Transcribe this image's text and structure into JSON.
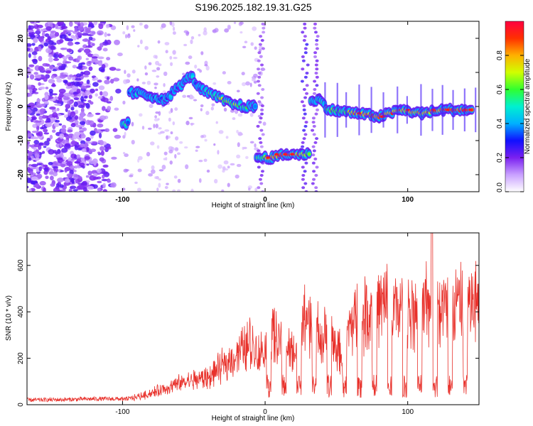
{
  "figure_title": "S196.2025.182.19.31.G25",
  "colors": {
    "snr_line": "#e8302a",
    "frame": "#000000"
  },
  "chart_data": [
    {
      "type": "heatmap",
      "title": "",
      "xlabel": "Height of straight line (km)",
      "ylabel": "Frequency (Hz)",
      "xlim": [
        -167,
        150
      ],
      "ylim": [
        -25,
        25
      ],
      "xticks": [
        -100,
        0,
        100
      ],
      "yticks": [
        -20,
        -10,
        0,
        10,
        20
      ],
      "colorbar": {
        "label": "Normalized spectral amplitude",
        "range": [
          0,
          1
        ],
        "ticks": [
          "0.0",
          "0.2",
          "0.4",
          "0.6",
          "0.8"
        ],
        "colormap": "white-violet-blue-cyan-green-yellow-orange-red"
      },
      "ridge": [
        {
          "x": -100,
          "f": -5,
          "amp": 0.45
        },
        {
          "x": -90,
          "f": 4,
          "amp": 0.4
        },
        {
          "x": -80,
          "f": 3,
          "amp": 0.4
        },
        {
          "x": -70,
          "f": 2,
          "amp": 0.38
        },
        {
          "x": -60,
          "f": 6,
          "amp": 0.4
        },
        {
          "x": -52,
          "f": 9,
          "amp": 0.42
        },
        {
          "x": -45,
          "f": 5,
          "amp": 0.45
        },
        {
          "x": -35,
          "f": 3,
          "amp": 0.55
        },
        {
          "x": -25,
          "f": 1,
          "amp": 0.7
        },
        {
          "x": -15,
          "f": 0,
          "amp": 0.55
        },
        {
          "x": -8,
          "f": 0,
          "amp": 0.35
        },
        {
          "x": -5,
          "f": -15,
          "amp": 0.55
        },
        {
          "x": 5,
          "f": -15,
          "amp": 0.85
        },
        {
          "x": 15,
          "f": -14,
          "amp": 0.9
        },
        {
          "x": 25,
          "f": -14,
          "amp": 0.8
        },
        {
          "x": 38,
          "f": 2,
          "amp": 0.4
        },
        {
          "x": 45,
          "f": -1,
          "amp": 0.55
        },
        {
          "x": 65,
          "f": -2,
          "amp": 0.75
        },
        {
          "x": 80,
          "f": -3,
          "amp": 0.85
        },
        {
          "x": 95,
          "f": -1,
          "amp": 0.8
        },
        {
          "x": 110,
          "f": -2,
          "amp": 0.75
        },
        {
          "x": 125,
          "f": -1,
          "amp": 0.9
        },
        {
          "x": 145,
          "f": -1,
          "amp": 0.9
        }
      ]
    },
    {
      "type": "line",
      "title": "",
      "xlabel": "Height of straight line (km)",
      "ylabel": "SNR (10 * v/v)",
      "xlim": [
        -167,
        150
      ],
      "ylim": [
        0,
        740
      ],
      "xticks": [
        -100,
        0,
        100
      ],
      "yticks": [
        0,
        200,
        400,
        600
      ],
      "series": [
        {
          "x": [
            -167,
            -140,
            -120,
            -100,
            -90,
            -80,
            -70,
            -60,
            -50,
            -40,
            -30,
            -20,
            -10,
            -5,
            0,
            5,
            10,
            15,
            20,
            25,
            30,
            35,
            40,
            45,
            50,
            55,
            60,
            65,
            70,
            75,
            80,
            85,
            90,
            95,
            100,
            105,
            110,
            115,
            120,
            125,
            130,
            135,
            140,
            145,
            150
          ],
          "y": [
            20,
            22,
            25,
            25,
            40,
            60,
            85,
            110,
            130,
            140,
            200,
            260,
            330,
            260,
            300,
            360,
            330,
            280,
            270,
            420,
            430,
            400,
            340,
            360,
            290,
            250,
            430,
            450,
            480,
            470,
            500,
            520,
            480,
            510,
            490,
            510,
            500,
            520,
            520,
            500,
            510,
            520,
            500,
            520,
            530
          ]
        }
      ]
    }
  ]
}
